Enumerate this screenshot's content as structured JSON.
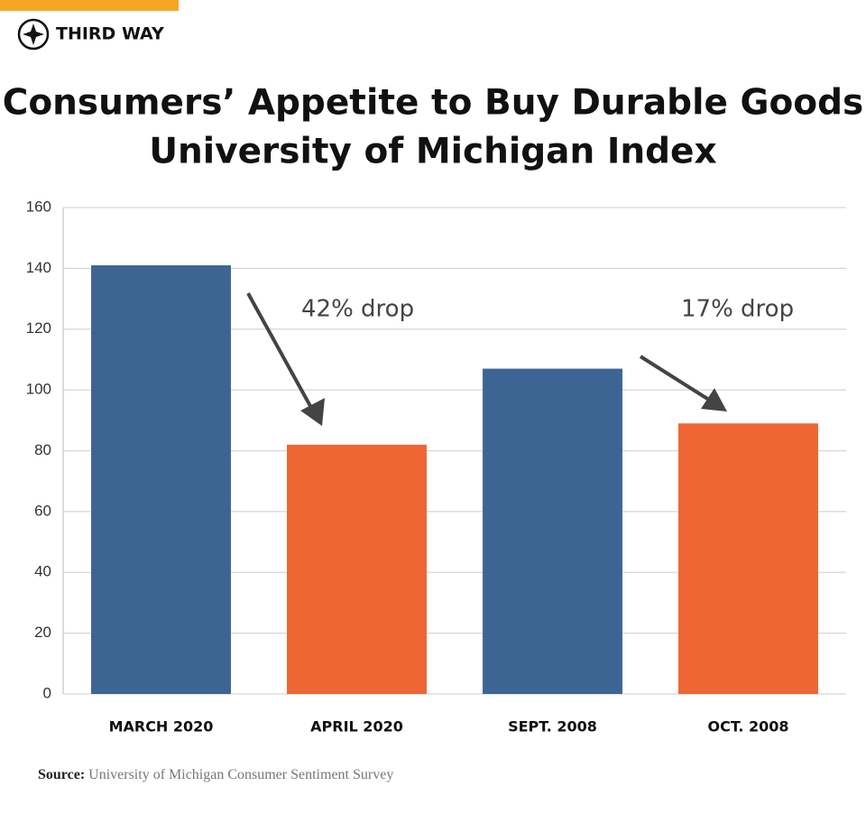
{
  "brand": "THIRD WAY",
  "chart_data": {
    "type": "bar",
    "title": [
      "Consumers’ Appetite to Buy Durable Goods",
      "University of Michigan Index"
    ],
    "categories": [
      "MARCH 2020",
      "APRIL 2020",
      "SEPT. 2008",
      "OCT. 2008"
    ],
    "values": [
      141,
      82,
      107,
      89
    ],
    "colors": [
      "#3d6594",
      "#ee6633",
      "#3d6594",
      "#ee6633"
    ],
    "ylim": [
      0,
      160
    ],
    "yticks": [
      0,
      20,
      40,
      60,
      80,
      100,
      120,
      140,
      160
    ],
    "grid": true,
    "annotations": [
      "42% drop",
      "17% drop"
    ],
    "source": {
      "label": "Source:",
      "text": "University of Michigan Consumer Sentiment Survey"
    }
  }
}
